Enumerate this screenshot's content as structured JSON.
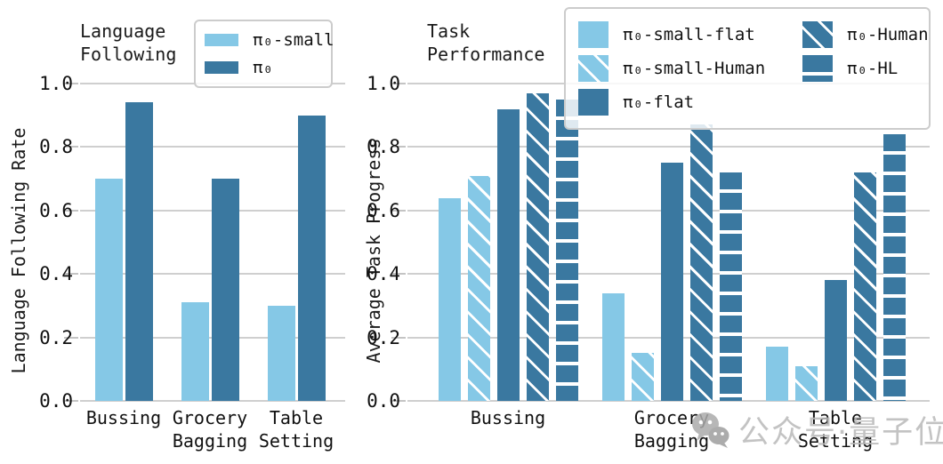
{
  "figure": {
    "watermark": {
      "icon": "wechat-icon",
      "text": "公众号·量子位"
    }
  },
  "colors": {
    "light_blue": "#85C8E6",
    "dark_blue": "#3A78A0",
    "grid": "#CFCFCF",
    "text": "#111111",
    "legend_border": "#CCCCCC",
    "watermark_gray": "#B9B9B9"
  },
  "chart_data": [
    {
      "type": "bar",
      "title": "Language\nFollowing",
      "ylabel": "Language Following Rate",
      "xlabel": "",
      "ylim": [
        0.0,
        1.0
      ],
      "yticks": [
        1.0,
        0.8,
        0.6,
        0.4,
        0.2,
        0.0
      ],
      "grid": true,
      "legend_position": "upper-right",
      "categories": [
        "Bussing",
        "Grocery\nBagging",
        "Table\nSetting"
      ],
      "series": [
        {
          "name": "π₀-small",
          "color": "light_blue",
          "hatch": "none",
          "values": [
            0.7,
            0.31,
            0.3
          ]
        },
        {
          "name": "π₀",
          "color": "dark_blue",
          "hatch": "none",
          "values": [
            0.94,
            0.7,
            0.9
          ]
        }
      ]
    },
    {
      "type": "bar",
      "title": "Task\nPerformance",
      "ylabel": "Average Task Progress",
      "xlabel": "",
      "ylim": [
        0.0,
        1.0
      ],
      "yticks": [
        1.0,
        0.8,
        0.6,
        0.4,
        0.2,
        0.0
      ],
      "grid": true,
      "legend_position": "upper-right-overlay",
      "categories": [
        "Bussing",
        "Grocery\nBagging",
        "Table\nSetting"
      ],
      "series": [
        {
          "name": "π₀-small-flat",
          "color": "light_blue",
          "hatch": "none",
          "values": [
            0.64,
            0.34,
            0.17
          ]
        },
        {
          "name": "π₀-small-Human",
          "color": "light_blue",
          "hatch": "diagonal",
          "values": [
            0.71,
            0.15,
            0.11
          ]
        },
        {
          "name": "π₀-flat",
          "color": "dark_blue",
          "hatch": "none",
          "values": [
            0.92,
            0.75,
            0.38
          ]
        },
        {
          "name": "π₀-Human",
          "color": "dark_blue",
          "hatch": "diagonal",
          "values": [
            0.97,
            0.87,
            0.72
          ]
        },
        {
          "name": "π₀-HL",
          "color": "dark_blue",
          "hatch": "horizontal",
          "values": [
            0.95,
            0.72,
            0.84
          ]
        }
      ]
    }
  ]
}
